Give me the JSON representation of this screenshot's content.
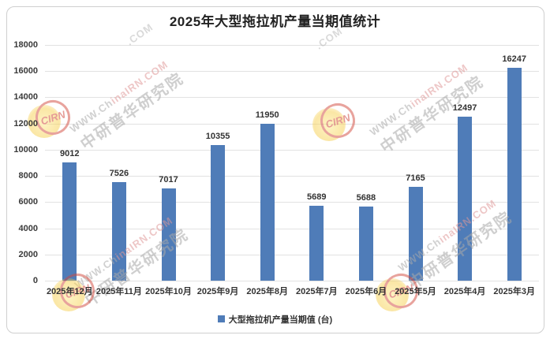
{
  "chart_data": {
    "type": "bar",
    "title": "2025年大型拖拉机产量当期值统计",
    "categories": [
      "2025年12月",
      "2025年11月",
      "2025年10月",
      "2025年9月",
      "2025年8月",
      "2025年7月",
      "2025年6月",
      "2025年5月",
      "2025年4月",
      "2025年3月"
    ],
    "values": [
      9012,
      7526,
      7017,
      10355,
      11950,
      5689,
      5688,
      7165,
      12497,
      16247
    ],
    "xlabel": "",
    "ylabel": "",
    "ylim": [
      0,
      18000
    ],
    "ytick_interval": 2000,
    "yticks": [
      0,
      2000,
      4000,
      6000,
      8000,
      10000,
      12000,
      14000,
      16000,
      18000
    ],
    "grid": true,
    "legend": [
      "大型拖拉机产量当期值 (台)"
    ],
    "legend_position": "bottom",
    "bar_color": "#4f7cb8"
  },
  "legend": {
    "label": "大型拖拉机产量当期值 (台)"
  },
  "watermark": {
    "line1_gray": "WWW.Ch",
    "line1_red": "inaIRN.COM",
    "line2": "中研普华研究院",
    "logo_text": "CIRN",
    "tail": ".COM"
  }
}
